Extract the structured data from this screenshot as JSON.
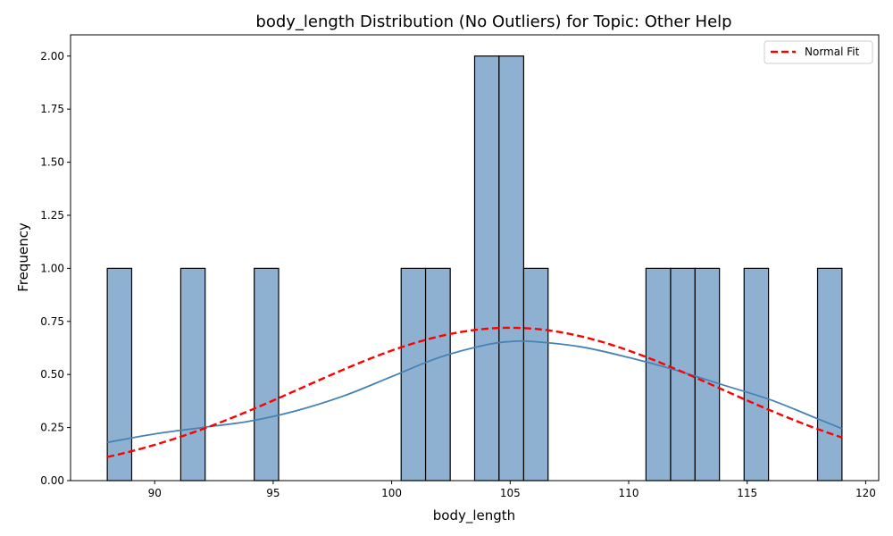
{
  "chart_data": {
    "type": "histogram",
    "title": "body_length Distribution (No Outliers) for Topic: Other Help",
    "xlabel": "body_length",
    "ylabel": "Frequency",
    "xlim": [
      86.45,
      120.55
    ],
    "ylim": [
      0,
      2.1
    ],
    "x_ticks": [
      90,
      95,
      100,
      105,
      110,
      115,
      120
    ],
    "x_tick_labels": [
      "90",
      "95",
      "100",
      "105",
      "110",
      "115",
      "120"
    ],
    "y_ticks": [
      0,
      0.25,
      0.5,
      0.75,
      1.0,
      1.25,
      1.5,
      1.75,
      2.0
    ],
    "y_tick_labels": [
      "0.00",
      "0.25",
      "0.50",
      "0.75",
      "1.00",
      "1.25",
      "1.50",
      "1.75",
      "2.00"
    ],
    "grid": false,
    "bin_range": [
      88,
      119
    ],
    "bin_count": 30,
    "bins": [
      {
        "start": 88.0,
        "end": 89.03,
        "count": 1
      },
      {
        "start": 91.1,
        "end": 92.13,
        "count": 1
      },
      {
        "start": 94.2,
        "end": 95.23,
        "count": 1
      },
      {
        "start": 100.4,
        "end": 101.43,
        "count": 1
      },
      {
        "start": 101.43,
        "end": 102.47,
        "count": 1
      },
      {
        "start": 103.5,
        "end": 104.53,
        "count": 2
      },
      {
        "start": 104.53,
        "end": 105.57,
        "count": 2
      },
      {
        "start": 105.57,
        "end": 106.6,
        "count": 1
      },
      {
        "start": 110.73,
        "end": 111.77,
        "count": 1
      },
      {
        "start": 111.77,
        "end": 112.8,
        "count": 1
      },
      {
        "start": 112.8,
        "end": 113.83,
        "count": 1
      },
      {
        "start": 114.87,
        "end": 115.9,
        "count": 1
      },
      {
        "start": 117.97,
        "end": 119.0,
        "count": 1
      }
    ],
    "series": [
      {
        "kind": "kde",
        "color": "#4682b4",
        "x": [
          88,
          90,
          92,
          94,
          96,
          98,
          100,
          102,
          104,
          105,
          106,
          108,
          110,
          112,
          114,
          116,
          118,
          119
        ],
        "y": [
          0.18,
          0.22,
          0.25,
          0.28,
          0.33,
          0.4,
          0.49,
          0.58,
          0.64,
          0.655,
          0.655,
          0.63,
          0.58,
          0.52,
          0.45,
          0.38,
          0.29,
          0.245
        ]
      },
      {
        "kind": "normal_fit",
        "name": "Normal Fit",
        "color": "#ff0000",
        "mean": 105.0,
        "std": 8.8,
        "y_peak": 0.72,
        "x_range": [
          88,
          119
        ]
      }
    ],
    "bar_fill": "#8eb1d2",
    "bar_edge": "#000000",
    "legend": {
      "position": "top-right",
      "entries": [
        "Normal Fit"
      ]
    }
  }
}
